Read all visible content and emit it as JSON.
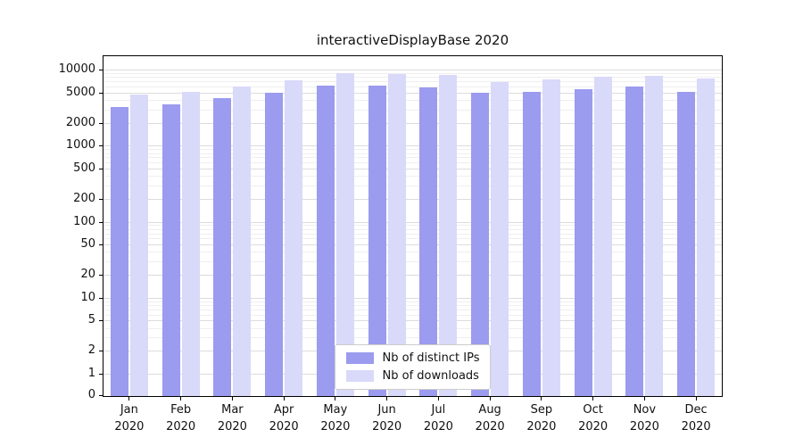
{
  "chart_data": {
    "type": "bar",
    "title": "interactiveDisplayBase 2020",
    "categories": [
      "Jan 2020",
      "Feb 2020",
      "Mar 2020",
      "Apr 2020",
      "May 2020",
      "Jun 2020",
      "Jul 2020",
      "Aug 2020",
      "Sep 2020",
      "Oct 2020",
      "Nov 2020",
      "Dec 2020"
    ],
    "series": [
      {
        "name": "Nb of distinct IPs",
        "color": "#9b9bef",
        "values": [
          3300,
          3600,
          4300,
          5100,
          6400,
          6400,
          6000,
          5100,
          5300,
          5700,
          6100,
          5300
        ]
      },
      {
        "name": "Nb of downloads",
        "color": "#d9d9f9",
        "values": [
          4800,
          5300,
          6100,
          7400,
          9300,
          9000,
          8800,
          7100,
          7700,
          8200,
          8500,
          7900
        ]
      }
    ],
    "yscale": "symlog",
    "yticks": [
      0,
      1,
      2,
      5,
      10,
      20,
      50,
      100,
      200,
      500,
      1000,
      2000,
      5000,
      10000
    ],
    "ylim": [
      0,
      10000
    ],
    "grid": true,
    "legend_position": "lower center",
    "xlabel": "",
    "ylabel": ""
  }
}
